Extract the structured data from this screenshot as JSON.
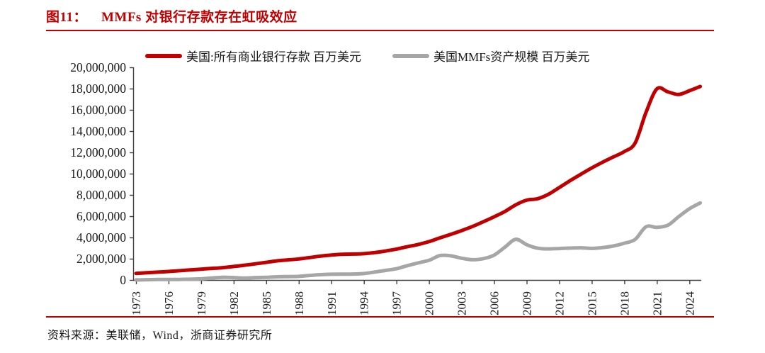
{
  "title": {
    "label": "图11：",
    "text": "MMFs 对银行存款存在虹吸效应"
  },
  "source": {
    "label": "资料来源：",
    "text": "美联储，Wind，浙商证券研究所"
  },
  "colors": {
    "accent_red": "#c00000",
    "series_gray": "#a6a6a6",
    "axis": "#404040",
    "text": "#1a1a1a"
  },
  "chart_data": {
    "type": "line",
    "title": "MMFs 对银行存款存在虹吸效应",
    "xlabel": "",
    "ylabel": "百万美元",
    "ylim": [
      0,
      20000000
    ],
    "grid": false,
    "legend_position": "top",
    "x": [
      1973,
      1974,
      1975,
      1976,
      1977,
      1978,
      1979,
      1980,
      1981,
      1982,
      1983,
      1984,
      1985,
      1986,
      1987,
      1988,
      1989,
      1990,
      1991,
      1992,
      1993,
      1994,
      1995,
      1996,
      1997,
      1998,
      1999,
      2000,
      2001,
      2002,
      2003,
      2004,
      2005,
      2006,
      2007,
      2008,
      2009,
      2010,
      2011,
      2012,
      2013,
      2014,
      2015,
      2016,
      2017,
      2018,
      2019,
      2020,
      2021,
      2022,
      2023,
      2024,
      2025
    ],
    "x_tick_years": [
      1973,
      1976,
      1979,
      1982,
      1985,
      1988,
      1991,
      1994,
      1997,
      2000,
      2003,
      2006,
      2009,
      2012,
      2015,
      2018,
      2021,
      2024
    ],
    "y_tick_labels": [
      "0",
      "2,000,000",
      "4,000,000",
      "6,000,000",
      "8,000,000",
      "10,000,000",
      "12,000,000",
      "14,000,000",
      "16,000,000",
      "18,000,000",
      "20,000,000"
    ],
    "series": [
      {
        "name": "美国:所有商业银行存款 百万美元",
        "color": "#c00000",
        "values": [
          620000,
          680000,
          740000,
          800000,
          870000,
          950000,
          1020000,
          1090000,
          1160000,
          1270000,
          1390000,
          1520000,
          1660000,
          1800000,
          1890000,
          1980000,
          2110000,
          2250000,
          2350000,
          2420000,
          2440000,
          2470000,
          2580000,
          2730000,
          2910000,
          3130000,
          3340000,
          3610000,
          3960000,
          4290000,
          4640000,
          5030000,
          5470000,
          5940000,
          6450000,
          7070000,
          7510000,
          7640000,
          8060000,
          8690000,
          9340000,
          9950000,
          10540000,
          11080000,
          11580000,
          12080000,
          12890000,
          15760000,
          17980000,
          17700000,
          17450000,
          17800000,
          18200000
        ]
      },
      {
        "name": "美国MMFs资产规模 百万美元",
        "color": "#a6a6a6",
        "values": [
          10000,
          25000,
          45000,
          50000,
          55000,
          75000,
          110000,
          190000,
          250000,
          230000,
          180000,
          230000,
          250000,
          300000,
          320000,
          340000,
          430000,
          500000,
          540000,
          550000,
          560000,
          610000,
          750000,
          900000,
          1060000,
          1350000,
          1610000,
          1850000,
          2290000,
          2270000,
          2050000,
          1910000,
          2010000,
          2340000,
          3090000,
          3830000,
          3320000,
          2990000,
          2930000,
          2960000,
          3000000,
          3030000,
          2970000,
          3050000,
          3200000,
          3460000,
          3820000,
          5010000,
          4950000,
          5150000,
          5950000,
          6700000,
          7250000
        ]
      }
    ]
  }
}
